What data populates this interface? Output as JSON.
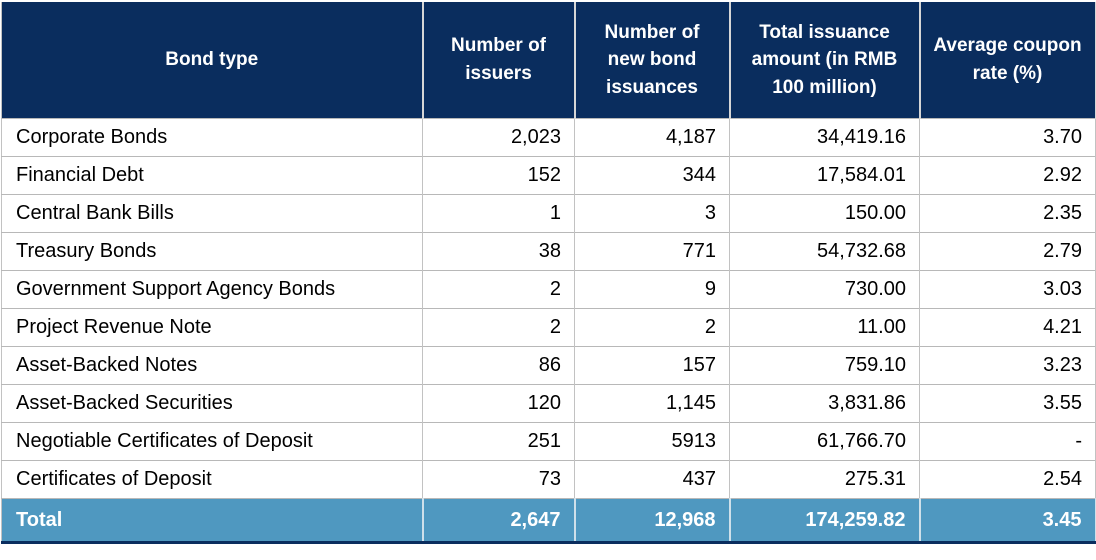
{
  "header": {
    "columns": [
      "Bond type",
      "Number of issuers",
      "Number of new bond issuances",
      "Total issuance amount (in RMB 100 million)",
      "Average coupon rate (%)"
    ]
  },
  "rows": [
    {
      "bond_type": "Corporate Bonds",
      "issuers": "2,023",
      "new_issuances": "4,187",
      "total_amount": "34,419.16",
      "avg_coupon": "3.70"
    },
    {
      "bond_type": "Financial Debt",
      "issuers": "152",
      "new_issuances": "344",
      "total_amount": "17,584.01",
      "avg_coupon": "2.92"
    },
    {
      "bond_type": "Central Bank Bills",
      "issuers": "1",
      "new_issuances": "3",
      "total_amount": "150.00",
      "avg_coupon": "2.35"
    },
    {
      "bond_type": "Treasury Bonds",
      "issuers": "38",
      "new_issuances": "771",
      "total_amount": "54,732.68",
      "avg_coupon": "2.79"
    },
    {
      "bond_type": "Government Support Agency Bonds",
      "issuers": "2",
      "new_issuances": "9",
      "total_amount": "730.00",
      "avg_coupon": "3.03"
    },
    {
      "bond_type": "Project Revenue Note",
      "issuers": "2",
      "new_issuances": "2",
      "total_amount": "11.00",
      "avg_coupon": "4.21"
    },
    {
      "bond_type": "Asset-Backed Notes",
      "issuers": "86",
      "new_issuances": "157",
      "total_amount": "759.10",
      "avg_coupon": "3.23"
    },
    {
      "bond_type": "Asset-Backed Securities",
      "issuers": "120",
      "new_issuances": "1,145",
      "total_amount": "3,831.86",
      "avg_coupon": "3.55"
    },
    {
      "bond_type": "Negotiable Certificates of Deposit",
      "issuers": "251",
      "new_issuances": "5913",
      "total_amount": "61,766.70",
      "avg_coupon": "-"
    },
    {
      "bond_type": "Certificates of Deposit",
      "issuers": "73",
      "new_issuances": "437",
      "total_amount": "275.31",
      "avg_coupon": "2.54"
    }
  ],
  "total_row": {
    "label": "Total",
    "issuers": "2,647",
    "new_issuances": "12,968",
    "total_amount": "174,259.82",
    "avg_coupon": "3.45"
  },
  "colors": {
    "header_bg": "#0a2d5e",
    "header_text": "#ffffff",
    "total_bg": "#4f98c0",
    "total_text": "#ffffff",
    "body_text": "#000000",
    "gridline": "#bdbdbd"
  },
  "chart_data": {
    "type": "table",
    "title": "Bond issuance summary by bond type",
    "columns": [
      "Bond type",
      "Number of issuers",
      "Number of new bond issuances",
      "Total issuance amount (in RMB 100 million)",
      "Average coupon rate (%)"
    ],
    "rows": [
      [
        "Corporate Bonds",
        2023,
        4187,
        34419.16,
        3.7
      ],
      [
        "Financial Debt",
        152,
        344,
        17584.01,
        2.92
      ],
      [
        "Central Bank Bills",
        1,
        3,
        150.0,
        2.35
      ],
      [
        "Treasury Bonds",
        38,
        771,
        54732.68,
        2.79
      ],
      [
        "Government Support Agency Bonds",
        2,
        9,
        730.0,
        3.03
      ],
      [
        "Project Revenue Note",
        2,
        2,
        11.0,
        4.21
      ],
      [
        "Asset-Backed Notes",
        86,
        157,
        759.1,
        3.23
      ],
      [
        "Asset-Backed Securities",
        120,
        1145,
        3831.86,
        3.55
      ],
      [
        "Negotiable Certificates of Deposit",
        251,
        5913,
        61766.7,
        null
      ],
      [
        "Certificates of Deposit",
        73,
        437,
        275.31,
        2.54
      ]
    ],
    "total": [
      "Total",
      2647,
      12968,
      174259.82,
      3.45
    ]
  }
}
